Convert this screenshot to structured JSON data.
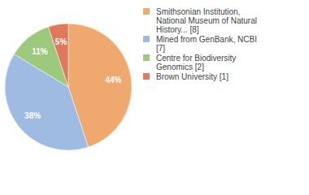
{
  "chart_data": {
    "type": "pie",
    "categories": [
      "Smithsonian Institution, National Museum of Natural History... [8]",
      "Mined from GenBank, NCBI [7]",
      "Centre for Biodiversity Genomics [2]",
      "Brown University [1]"
    ],
    "values": [
      44,
      38,
      11,
      5
    ],
    "value_labels": [
      "44%",
      "38%",
      "11%",
      "5%"
    ],
    "colors": [
      "#efa96f",
      "#9fbbe2",
      "#9cc97c",
      "#e0785c"
    ],
    "data_labels": true,
    "legend": "right"
  }
}
